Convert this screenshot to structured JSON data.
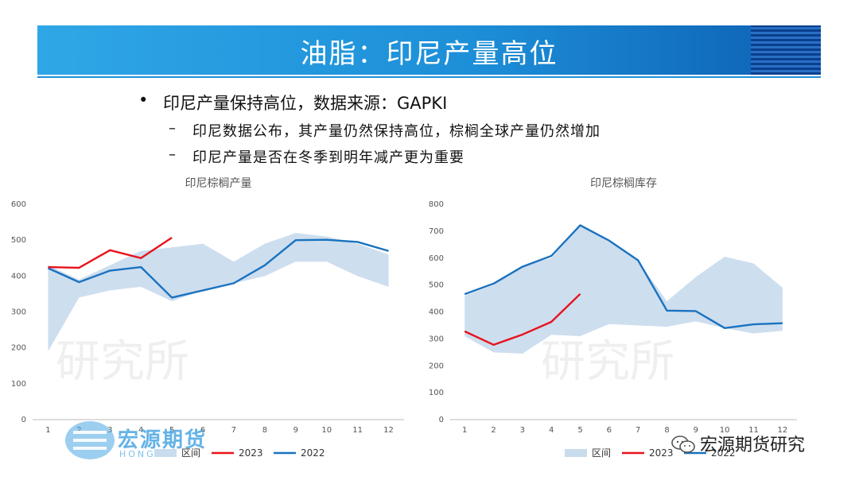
{
  "slide": {
    "title": "油脂：印尼产量高位",
    "bullet": "印尼产量保持高位，数据来源：GAPKI",
    "subbullets": [
      "印尼数据公布，其产量仍然保持高位，棕榈全球产量仍然增加",
      "印尼产量是否在冬季到明年减产更为重要"
    ],
    "bullet_marker": "•",
    "dash_marker": "–"
  },
  "logo": {
    "name": "宏源期货",
    "sub": "HONG"
  },
  "wechat": {
    "label": "宏源期货研究",
    "icon": "wechat-icon"
  },
  "colors": {
    "band": "#bcd3ea",
    "y2023": "#e8121c",
    "y2022": "#1a72bf",
    "banner": "#1d8fd8"
  },
  "chart_data": [
    {
      "type": "line",
      "title": "印尼棕榈产量",
      "x": [
        1,
        2,
        3,
        4,
        5,
        6,
        7,
        8,
        9,
        10,
        11,
        12
      ],
      "ylim": [
        0,
        600
      ],
      "yticks": [
        0,
        100,
        200,
        300,
        400,
        500,
        600
      ],
      "band": {
        "name": "区间",
        "low": [
          190,
          340,
          360,
          370,
          330,
          360,
          380,
          400,
          440,
          440,
          400,
          370
        ],
        "high": [
          430,
          390,
          430,
          470,
          480,
          490,
          440,
          490,
          520,
          510,
          490,
          460
        ]
      },
      "series": [
        {
          "name": "2023",
          "values": [
            425,
            423,
            472,
            450,
            507,
            null,
            null,
            null,
            null,
            null,
            null,
            null
          ]
        },
        {
          "name": "2022",
          "values": [
            422,
            383,
            415,
            425,
            340,
            360,
            380,
            430,
            500,
            501,
            495,
            470
          ]
        }
      ],
      "legend": [
        "区间",
        "2023",
        "2022"
      ],
      "grid": false
    },
    {
      "type": "line",
      "title": "印尼棕榈库存",
      "x": [
        1,
        2,
        3,
        4,
        5,
        6,
        7,
        8,
        9,
        10,
        11,
        12
      ],
      "ylim": [
        0,
        800
      ],
      "yticks": [
        0,
        100,
        200,
        300,
        400,
        500,
        600,
        700,
        800
      ],
      "band": {
        "name": "区间",
        "low": [
          310,
          250,
          245,
          315,
          310,
          355,
          350,
          345,
          365,
          340,
          320,
          330
        ],
        "high": [
          460,
          500,
          570,
          600,
          720,
          660,
          590,
          440,
          530,
          605,
          580,
          490
        ]
      },
      "series": [
        {
          "name": "2023",
          "values": [
            328,
            278,
            316,
            363,
            467,
            null,
            null,
            null,
            null,
            null,
            null,
            null
          ]
        },
        {
          "name": "2022",
          "values": [
            466,
            505,
            568,
            608,
            722,
            665,
            592,
            405,
            403,
            340,
            354,
            358
          ]
        }
      ],
      "legend": [
        "区间",
        "2023",
        "2022"
      ],
      "grid": false
    }
  ]
}
